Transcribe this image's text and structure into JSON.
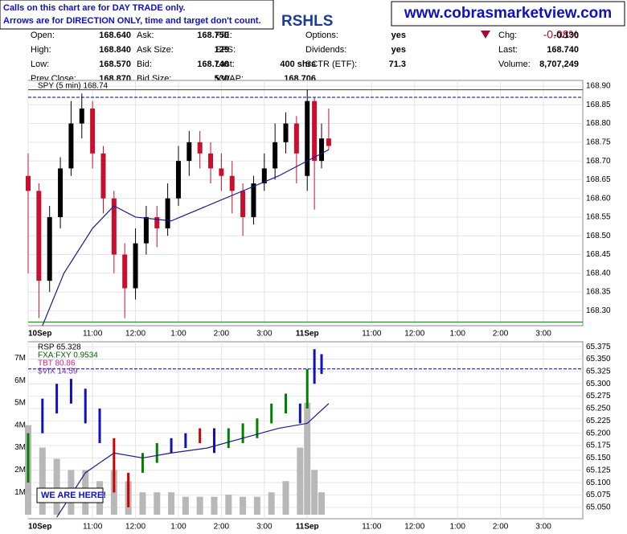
{
  "chart_data": [
    {
      "type": "candlestick",
      "legend_label": "SPY (5 min) 168.74",
      "x": [
        0,
        3,
        6,
        9,
        12,
        15,
        18,
        21,
        24,
        27,
        30,
        33,
        36,
        39,
        42,
        45,
        48,
        51,
        54,
        57,
        60,
        63,
        66,
        69,
        72,
        75,
        78,
        80,
        82,
        84
      ],
      "open": [
        168.66,
        168.62,
        168.38,
        168.55,
        168.68,
        168.8,
        168.84,
        168.72,
        168.6,
        168.45,
        168.36,
        168.48,
        168.55,
        168.52,
        168.6,
        168.7,
        168.75,
        168.72,
        168.68,
        168.66,
        168.62,
        168.55,
        168.64,
        168.68,
        168.75,
        168.8,
        168.66,
        168.86,
        168.7,
        168.76
      ],
      "high": [
        168.72,
        168.64,
        168.58,
        168.71,
        168.86,
        168.88,
        168.86,
        168.74,
        168.62,
        168.48,
        168.52,
        168.58,
        168.58,
        168.64,
        168.74,
        168.78,
        168.78,
        168.75,
        168.72,
        168.7,
        168.64,
        168.66,
        168.72,
        168.8,
        168.83,
        168.82,
        168.89,
        168.87,
        168.8,
        168.84
      ],
      "low": [
        168.4,
        168.28,
        168.35,
        168.52,
        168.66,
        168.76,
        168.68,
        168.56,
        168.4,
        168.28,
        168.33,
        168.45,
        168.47,
        168.5,
        168.58,
        168.66,
        168.68,
        168.64,
        168.62,
        168.56,
        168.5,
        168.53,
        168.62,
        168.65,
        168.72,
        168.64,
        168.62,
        168.57,
        168.68,
        168.73
      ],
      "close": [
        168.62,
        168.38,
        168.55,
        168.68,
        168.8,
        168.84,
        168.72,
        168.6,
        168.45,
        168.36,
        168.48,
        168.55,
        168.52,
        168.6,
        168.7,
        168.75,
        168.72,
        168.68,
        168.66,
        168.62,
        168.55,
        168.64,
        168.68,
        168.75,
        168.8,
        168.72,
        168.86,
        168.7,
        168.76,
        168.74
      ],
      "up_color": "#000000",
      "down_color": "#c8102e",
      "ma": {
        "color": "#1a1a8c",
        "x": [
          4,
          10,
          18,
          24,
          30,
          40,
          50,
          60,
          70,
          78,
          84
        ],
        "values": [
          168.26,
          168.4,
          168.52,
          168.58,
          168.55,
          168.54,
          168.58,
          168.62,
          168.66,
          168.7,
          168.73
        ]
      },
      "hlines": [
        {
          "value": 168.89,
          "color": "#c00000"
        },
        {
          "value": 168.27,
          "color": "#008000"
        },
        {
          "value": 168.87,
          "color": "#000080",
          "dashed": true
        }
      ],
      "xlim": [
        0,
        155
      ],
      "xticks": [
        {
          "value": 0,
          "label": "10Sep"
        },
        {
          "value": 18,
          "label": "11:00"
        },
        {
          "value": 30,
          "label": "12:00"
        },
        {
          "value": 42,
          "label": "1:00"
        },
        {
          "value": 54,
          "label": "2:00"
        },
        {
          "value": 66,
          "label": "3:00"
        },
        {
          "value": 78,
          "label": "11Sep"
        },
        {
          "value": 96,
          "label": "11:00"
        },
        {
          "value": 108,
          "label": "12:00"
        },
        {
          "value": 120,
          "label": "1:00"
        },
        {
          "value": 132,
          "label": "2:00"
        },
        {
          "value": 144,
          "label": "3:00"
        }
      ],
      "ylim": [
        168.26,
        168.915
      ],
      "yticks": [
        {
          "value": 168.3,
          "label": "168.30"
        },
        {
          "value": 168.35,
          "label": "168.35"
        },
        {
          "value": 168.4,
          "label": "168.40"
        },
        {
          "value": 168.45,
          "label": "168.45"
        },
        {
          "value": 168.5,
          "label": "168.50"
        },
        {
          "value": 168.55,
          "label": "168.55"
        },
        {
          "value": 168.6,
          "label": "168.60"
        },
        {
          "value": 168.65,
          "label": "168.65"
        },
        {
          "value": 168.7,
          "label": "168.70"
        },
        {
          "value": 168.75,
          "label": "168.75"
        },
        {
          "value": 168.8,
          "label": "168.80"
        },
        {
          "value": 168.85,
          "label": "168.85"
        },
        {
          "value": 168.9,
          "label": "168.90"
        }
      ],
      "grid": true
    },
    {
      "type": "range-bar",
      "legend": [
        "RSP  65.328",
        "FXA:FXY  0.9534",
        "TBT  80.86",
        "$VIX  14.59"
      ],
      "legend_colors": [
        "#000000",
        "#006400",
        "#d0208a",
        "#7030a0"
      ],
      "annotation": "WE ARE HERE!",
      "x": [
        0,
        4,
        8,
        12,
        16,
        20,
        24,
        28,
        32,
        36,
        40,
        44,
        48,
        52,
        56,
        60,
        64,
        68,
        72,
        76,
        78,
        80,
        82
      ],
      "high": [
        65.2,
        65.27,
        65.3,
        65.31,
        65.29,
        65.25,
        65.19,
        65.12,
        65.16,
        65.18,
        65.19,
        65.2,
        65.21,
        65.21,
        65.21,
        65.22,
        65.23,
        65.26,
        65.28,
        65.26,
        65.33,
        65.37,
        65.36
      ],
      "low": [
        65.1,
        65.2,
        65.24,
        65.26,
        65.22,
        65.18,
        65.08,
        65.05,
        65.12,
        65.14,
        65.16,
        65.17,
        65.18,
        65.16,
        65.17,
        65.18,
        65.19,
        65.22,
        65.24,
        65.22,
        65.25,
        65.3,
        65.32
      ],
      "colors": [
        "#008000",
        "#1010c0",
        "#1010c0",
        "#1010c0",
        "#1010c0",
        "#1010c0",
        "#d00000",
        "#d00000",
        "#008000",
        "#008000",
        "#1010c0",
        "#1010c0",
        "#d00000",
        "#1010c0",
        "#008000",
        "#008000",
        "#008000",
        "#008000",
        "#008000",
        "#1010c0",
        "#008000",
        "#1010c0",
        "#1010c0"
      ],
      "volume": [
        4000000,
        3000000,
        2500000,
        2000000,
        2000000,
        1500000,
        2000000,
        1500000,
        1000000,
        1000000,
        1000000,
        800000,
        800000,
        800000,
        900000,
        800000,
        800000,
        1000000,
        1500000,
        3000000,
        5000000,
        2000000,
        1000000
      ],
      "volume_color": "#b8b8b8",
      "ma": {
        "color": "#1a1a8c",
        "x": [
          8,
          16,
          24,
          32,
          40,
          50,
          60,
          70,
          78,
          84
        ],
        "values": [
          65.03,
          65.12,
          65.16,
          65.15,
          65.16,
          65.17,
          65.19,
          65.21,
          65.22,
          65.26
        ]
      },
      "hlines": [
        {
          "value": 65.33,
          "color": "#000080",
          "dashed": true
        }
      ],
      "xlim": [
        0,
        155
      ],
      "xticks": [
        {
          "value": 0,
          "label": "10Sep"
        },
        {
          "value": 18,
          "label": "11:00"
        },
        {
          "value": 30,
          "label": "12:00"
        },
        {
          "value": 42,
          "label": "1:00"
        },
        {
          "value": 54,
          "label": "2:00"
        },
        {
          "value": 66,
          "label": "3:00"
        },
        {
          "value": 78,
          "label": "11Sep"
        },
        {
          "value": 96,
          "label": "11:00"
        },
        {
          "value": 108,
          "label": "12:00"
        },
        {
          "value": 120,
          "label": "1:00"
        },
        {
          "value": 132,
          "label": "2:00"
        },
        {
          "value": 144,
          "label": "3:00"
        }
      ],
      "ylim": [
        65.027,
        65.385
      ],
      "yticks": [
        {
          "value": 65.05,
          "label": "65.050"
        },
        {
          "value": 65.075,
          "label": "65.075"
        },
        {
          "value": 65.1,
          "label": "65.100"
        },
        {
          "value": 65.125,
          "label": "65.125"
        },
        {
          "value": 65.15,
          "label": "65.150"
        },
        {
          "value": 65.175,
          "label": "65.175"
        },
        {
          "value": 65.2,
          "label": "65.200"
        },
        {
          "value": 65.225,
          "label": "65.225"
        },
        {
          "value": 65.25,
          "label": "65.250"
        },
        {
          "value": 65.275,
          "label": "65.275"
        },
        {
          "value": 65.3,
          "label": "65.300"
        },
        {
          "value": 65.325,
          "label": "65.325"
        },
        {
          "value": 65.35,
          "label": "65.350"
        },
        {
          "value": 65.375,
          "label": "65.375"
        }
      ],
      "vlim": [
        -180000,
        7730000
      ],
      "vticks": [
        {
          "value": 1000000,
          "label": "1M"
        },
        {
          "value": 2000000,
          "label": "2M"
        },
        {
          "value": 3000000,
          "label": "3M"
        },
        {
          "value": 4000000,
          "label": "4M"
        },
        {
          "value": 5000000,
          "label": "5M"
        },
        {
          "value": 6000000,
          "label": "6M"
        },
        {
          "value": 7000000,
          "label": "7M"
        }
      ],
      "grid": true
    }
  ],
  "header": {
    "notice": [
      "Calls on this chart are for DAY TRADE only.",
      "Arrows are for DIRECTION ONLY, time and target don't count."
    ],
    "title": "RSHLS",
    "site": "www.cobrasmarketview.com",
    "change_pct": "-0.08%",
    "quote": [
      [
        "Open:",
        "168.640",
        "Ask:",
        "168.750",
        "P/E:",
        "",
        "Options:",
        "yes",
        "Chg:",
        "-0.130"
      ],
      [
        "High:",
        "168.840",
        "Ask Size:",
        "129",
        "EPS:",
        "",
        "Dividends:",
        "yes",
        "Last:",
        "168.740"
      ],
      [
        "Low:",
        "168.570",
        "Bid:",
        "168.740",
        "Last:",
        "400 shrs",
        "SCTR (ETF):",
        "71.3",
        "Volume:",
        "8,707,249"
      ],
      [
        "Prev Close:",
        "168.870",
        "Bid Size:",
        "530",
        "VWAP:",
        "168.706",
        "",
        "",
        "",
        ""
      ]
    ]
  }
}
